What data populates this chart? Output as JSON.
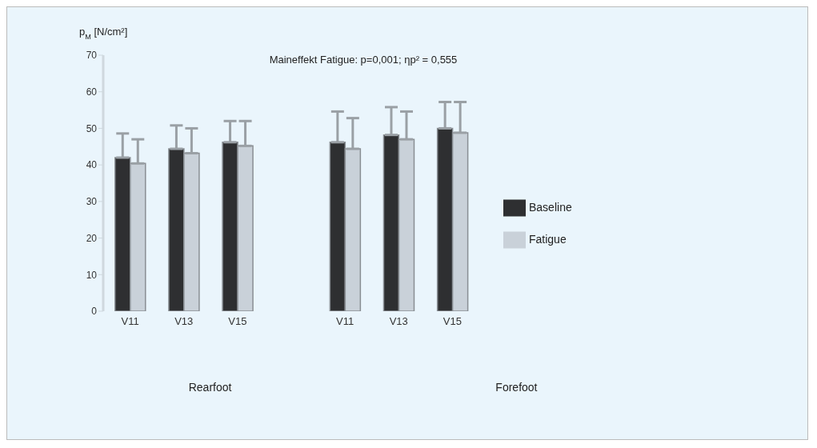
{
  "chart_data": {
    "type": "bar",
    "title": "Maineffekt Fatigue: p=0,001; ηp² = 0,555",
    "ylabel": "p$_{M}$ [N/cm²]",
    "categories": [
      "V11",
      "V13",
      "V15",
      null,
      "V11",
      "V13",
      "V15"
    ],
    "series": [
      {
        "name": "Baseline",
        "color": "#2e2f31",
        "values": [
          42,
          44.4,
          46.2,
          null,
          46.2,
          48.2,
          50
        ],
        "errors": [
          [
            42,
            48.6
          ],
          [
            44.4,
            50.8
          ],
          [
            46.2,
            52
          ],
          null,
          [
            46.2,
            54.6
          ],
          [
            48.2,
            55.8
          ],
          [
            50,
            57.2
          ]
        ]
      },
      {
        "name": "Fatigue",
        "color": "#c9d1d9",
        "values": [
          40.4,
          43.2,
          45.2,
          null,
          44.4,
          47,
          48.8
        ],
        "errors": [
          [
            40.4,
            47
          ],
          [
            43.2,
            50
          ],
          [
            45.2,
            52
          ],
          null,
          [
            44.4,
            52.8
          ],
          [
            47,
            54.6
          ],
          [
            48.8,
            57.2
          ]
        ]
      }
    ],
    "annotations": [
      "Rearfoot",
      "Forefoot"
    ],
    "ylim": [
      0,
      70
    ],
    "yticks": [
      0,
      10,
      20,
      30,
      40,
      50,
      60,
      70
    ],
    "grid": false,
    "legend": "right"
  }
}
